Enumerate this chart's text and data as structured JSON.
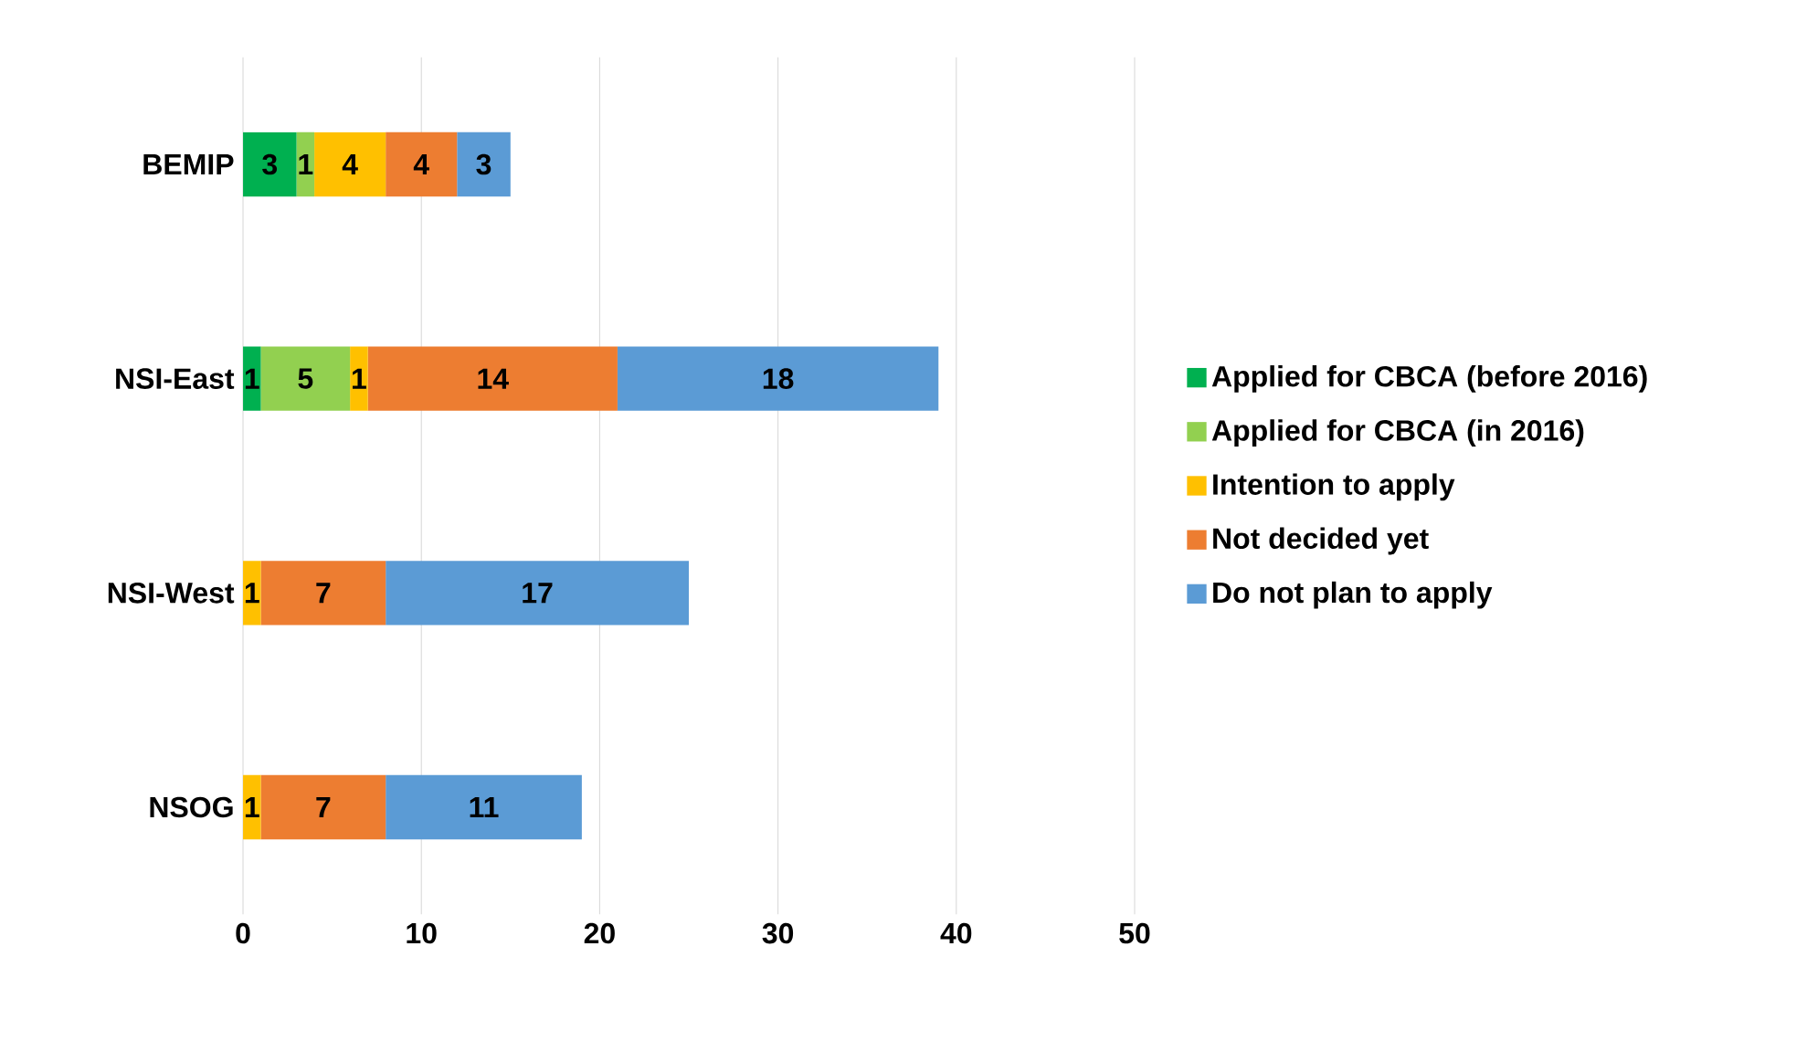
{
  "chart_data": {
    "type": "bar",
    "orientation": "horizontal",
    "stacked": true,
    "categories": [
      "BEMIP",
      "NSI-East",
      "NSI-West",
      "NSOG"
    ],
    "series": [
      {
        "name": "Applied for CBCA (before 2016)",
        "color": "#00b050",
        "values": [
          3,
          1,
          null,
          null
        ]
      },
      {
        "name": "Applied for CBCA (in 2016)",
        "color": "#92d050",
        "values": [
          1,
          5,
          null,
          null
        ]
      },
      {
        "name": "Intention to apply",
        "color": "#ffc000",
        "values": [
          4,
          1,
          1,
          1
        ]
      },
      {
        "name": "Not decided yet",
        "color": "#ed7d31",
        "values": [
          4,
          14,
          7,
          7
        ]
      },
      {
        "name": "Do not plan to apply",
        "color": "#5b9bd5",
        "values": [
          3,
          18,
          17,
          11
        ]
      }
    ],
    "xlim": [
      0,
      50
    ],
    "xticks": [
      0,
      10,
      20,
      30,
      40,
      50
    ],
    "grid": "x",
    "legend": "right",
    "data_labels": true
  }
}
